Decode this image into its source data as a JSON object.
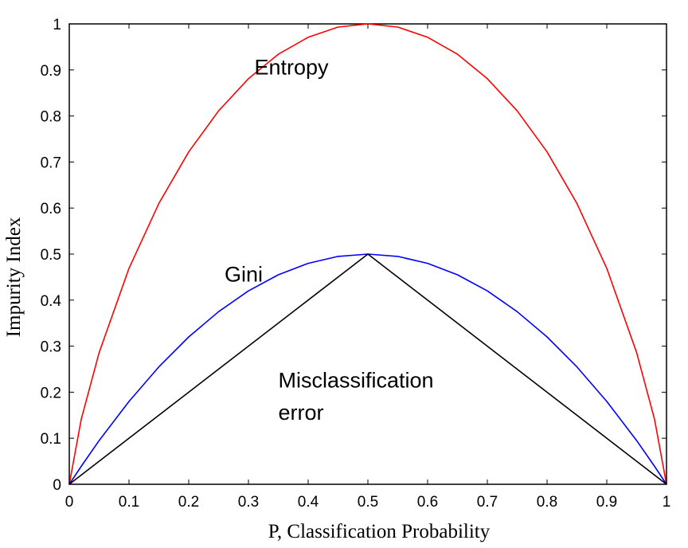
{
  "chart_data": {
    "type": "line",
    "title": "",
    "xlabel": "P, Classification Probability",
    "ylabel": "Impurity Index",
    "xlim": [
      0,
      1
    ],
    "ylim": [
      0,
      1
    ],
    "grid": false,
    "xticks": [
      "0",
      "0.1",
      "0.2",
      "0.3",
      "0.4",
      "0.5",
      "0.6",
      "0.7",
      "0.8",
      "0.9",
      "1"
    ],
    "yticks": [
      "0",
      "0.1",
      "0.2",
      "0.3",
      "0.4",
      "0.5",
      "0.6",
      "0.7",
      "0.8",
      "0.9",
      "1"
    ],
    "series": [
      {
        "color": "#ff0000",
        "x": [
          0,
          0.02,
          0.05,
          0.1,
          0.15,
          0.2,
          0.25,
          0.3,
          0.35,
          0.4,
          0.45,
          0.5,
          0.55,
          0.6,
          0.65,
          0.7,
          0.75,
          0.8,
          0.85,
          0.9,
          0.95,
          0.98,
          1
        ],
        "values": [
          0,
          0.141,
          0.286,
          0.469,
          0.61,
          0.722,
          0.811,
          0.881,
          0.934,
          0.971,
          0.993,
          1,
          0.993,
          0.971,
          0.934,
          0.881,
          0.811,
          0.722,
          0.61,
          0.469,
          0.286,
          0.141,
          0
        ]
      },
      {
        "color": "#0000ff",
        "x": [
          0,
          0.02,
          0.05,
          0.1,
          0.15,
          0.2,
          0.25,
          0.3,
          0.35,
          0.4,
          0.45,
          0.5,
          0.55,
          0.6,
          0.65,
          0.7,
          0.75,
          0.8,
          0.85,
          0.9,
          0.95,
          0.98,
          1
        ],
        "values": [
          0,
          0.039,
          0.095,
          0.18,
          0.255,
          0.32,
          0.375,
          0.42,
          0.455,
          0.48,
          0.495,
          0.5,
          0.495,
          0.48,
          0.455,
          0.42,
          0.375,
          0.32,
          0.255,
          0.18,
          0.095,
          0.039,
          0
        ]
      },
      {
        "color": "#000000",
        "x": [
          0,
          0.5,
          1
        ],
        "values": [
          0,
          0.5,
          0
        ]
      }
    ],
    "annotations": [
      {
        "text": "Entropy",
        "x": 0.31,
        "y": 0.89
      },
      {
        "text": "Gini",
        "x": 0.26,
        "y": 0.44
      },
      {
        "text": "Misclassification",
        "x": 0.35,
        "y": 0.21
      },
      {
        "text": "error",
        "x": 0.35,
        "y": 0.14
      }
    ]
  }
}
